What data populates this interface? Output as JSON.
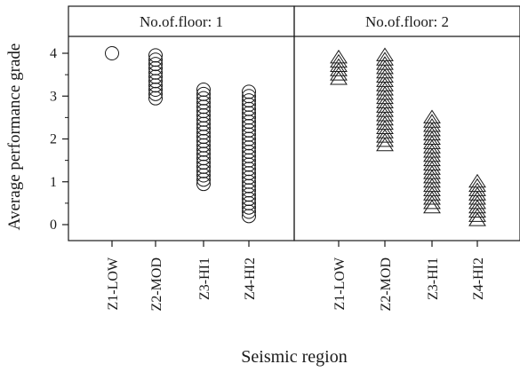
{
  "chart_data": {
    "type": "scatter",
    "xlabel": "Seismic region",
    "ylabel": "Average performance grade",
    "ylim": [
      -0.4,
      4.4
    ],
    "yticks": [
      0,
      1,
      2,
      3,
      4
    ],
    "categories": [
      "Z1-LOW",
      "Z2-MOD",
      "Z3-HI1",
      "Z4-HI2"
    ],
    "grid": false,
    "panels": [
      {
        "title": "No.of.floor: 1",
        "marker": "circle",
        "values": [
          [
            4.0
          ],
          [
            2.95,
            3.05,
            3.15,
            3.25,
            3.35,
            3.45,
            3.55,
            3.65,
            3.75,
            3.85,
            3.95
          ],
          [
            0.95,
            1.05,
            1.15,
            1.25,
            1.35,
            1.45,
            1.55,
            1.65,
            1.75,
            1.85,
            1.95,
            2.05,
            2.15,
            2.25,
            2.35,
            2.45,
            2.55,
            2.65,
            2.75,
            2.85,
            2.95,
            3.05,
            3.15
          ],
          [
            0.2,
            0.3,
            0.4,
            0.5,
            0.6,
            0.7,
            0.8,
            0.9,
            1.0,
            1.1,
            1.2,
            1.3,
            1.4,
            1.5,
            1.6,
            1.7,
            1.8,
            1.9,
            2.0,
            2.1,
            2.2,
            2.3,
            2.4,
            2.5,
            2.6,
            2.7,
            2.8,
            2.9,
            3.0,
            3.1
          ]
        ]
      },
      {
        "title": "No.of.floor: 2",
        "marker": "triangle",
        "values": [
          [
            3.4,
            3.5,
            3.6,
            3.7,
            3.8,
            3.9
          ],
          [
            1.85,
            1.95,
            2.05,
            2.15,
            2.25,
            2.35,
            2.45,
            2.55,
            2.65,
            2.75,
            2.85,
            2.95,
            3.05,
            3.15,
            3.25,
            3.35,
            3.45,
            3.55,
            3.65,
            3.75,
            3.85,
            3.95
          ],
          [
            0.4,
            0.5,
            0.6,
            0.7,
            0.8,
            0.9,
            1.0,
            1.1,
            1.2,
            1.3,
            1.4,
            1.5,
            1.6,
            1.7,
            1.8,
            1.9,
            2.0,
            2.1,
            2.2,
            2.3,
            2.4,
            2.5
          ],
          [
            0.1,
            0.2,
            0.3,
            0.4,
            0.5,
            0.6,
            0.7,
            0.8,
            0.9,
            1.0
          ]
        ]
      }
    ]
  }
}
